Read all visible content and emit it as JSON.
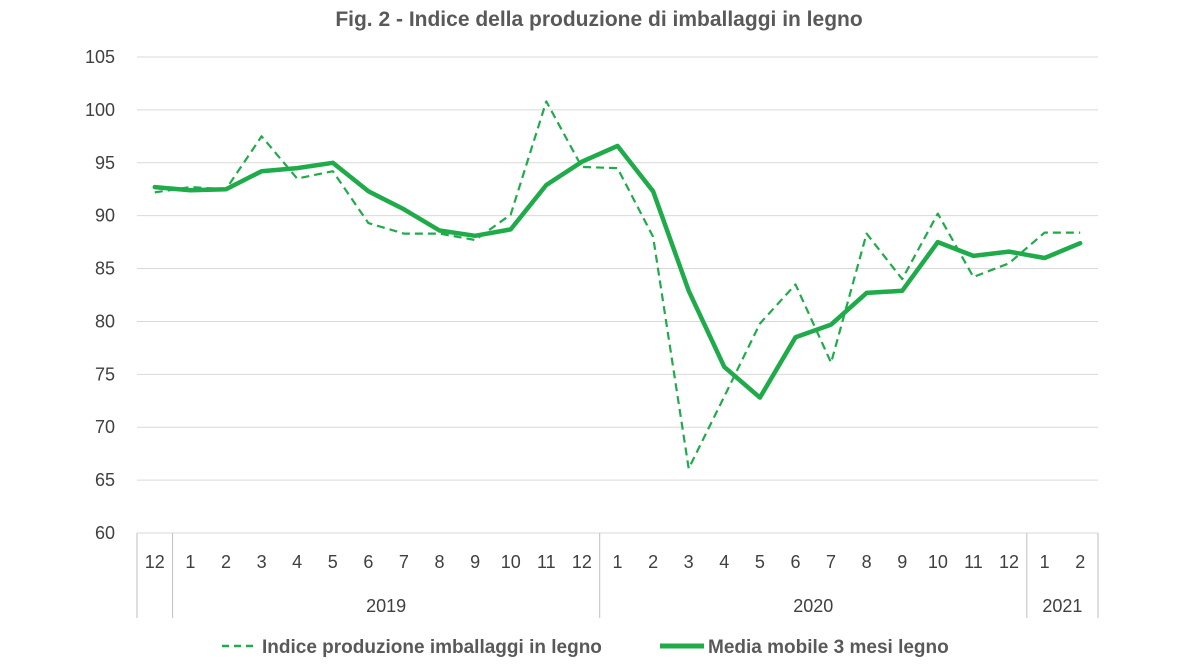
{
  "chart_data": {
    "type": "line",
    "title": "Fig. 2 - Indice della produzione di imballaggi in legno",
    "xlabel": "",
    "ylabel": "",
    "ylim": [
      60,
      105
    ],
    "yticks": [
      60,
      65,
      70,
      75,
      80,
      85,
      90,
      95,
      100,
      105
    ],
    "x": [
      "12",
      "1",
      "2",
      "3",
      "4",
      "5",
      "6",
      "7",
      "8",
      "9",
      "10",
      "11",
      "12",
      "1",
      "2",
      "3",
      "4",
      "5",
      "6",
      "7",
      "8",
      "9",
      "10",
      "11",
      "12",
      "1",
      "2"
    ],
    "year_groups": [
      {
        "label": "",
        "start": 0,
        "end": 0
      },
      {
        "label": "2019",
        "start": 1,
        "end": 12
      },
      {
        "label": "2020",
        "start": 13,
        "end": 24
      },
      {
        "label": "2021",
        "start": 25,
        "end": 26
      }
    ],
    "grid": true,
    "legend_position": "bottom",
    "series": [
      {
        "name": "Indice produzione imballaggi in legno",
        "style": "dashed",
        "color": "#1fab4a",
        "values": [
          92.2,
          92.7,
          92.5,
          97.5,
          93.5,
          94.2,
          89.3,
          88.3,
          88.3,
          87.7,
          90.1,
          100.8,
          94.6,
          94.5,
          88.0,
          66.1,
          72.9,
          79.8,
          83.5,
          76.1,
          88.3,
          84.0,
          90.2,
          84.2,
          85.5,
          88.4,
          88.4
        ]
      },
      {
        "name": "Media mobile 3 mesi  legno",
        "style": "solid",
        "color": "#1fab4a",
        "values": [
          92.7,
          92.4,
          92.5,
          94.2,
          94.5,
          95.0,
          92.3,
          90.6,
          88.6,
          88.1,
          88.7,
          92.9,
          95.1,
          96.6,
          92.3,
          82.9,
          75.7,
          72.8,
          78.5,
          79.7,
          82.7,
          82.9,
          87.5,
          86.2,
          86.6,
          86.0,
          87.4
        ]
      }
    ]
  }
}
